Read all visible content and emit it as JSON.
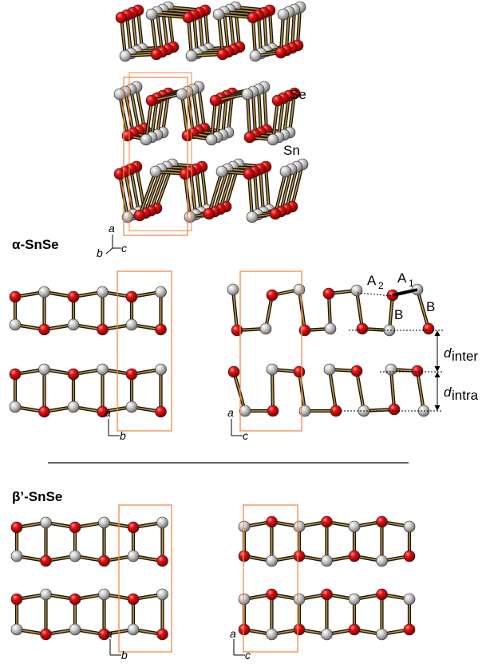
{
  "labels": {
    "alpha_title": "α-SnSe",
    "beta_title": "β’-SnSe",
    "se": "Se",
    "sn": "Sn",
    "a2": "A",
    "a2_sub": "2",
    "a1": "A",
    "a1_sub": "1",
    "b_left": "B",
    "b_right": "B",
    "d_inter": "d",
    "d_inter_sub": "inter",
    "d_intra": "d",
    "d_intra_sub": "intra"
  },
  "axes": {
    "top": {
      "v": "a",
      "l": "b",
      "r": "c"
    },
    "alpha_left": {
      "v": "a",
      "h": "b"
    },
    "alpha_right": {
      "v": "a",
      "h": "c"
    },
    "beta_left": {
      "v": "a",
      "h": "b"
    },
    "beta_right": {
      "v": "a",
      "h": "c"
    }
  },
  "colors": {
    "se_atom": "#e00000",
    "sn_atom": "#c4c4c4",
    "bond": "#6b4e1a",
    "cell": "#f08a4b"
  }
}
